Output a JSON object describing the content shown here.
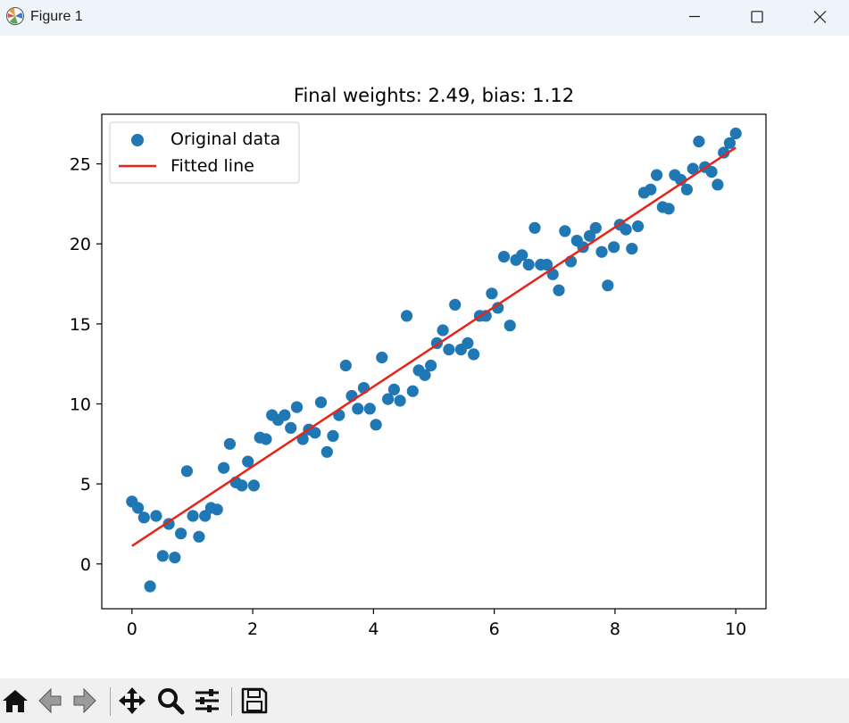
{
  "window": {
    "title": "Figure 1",
    "icons": [
      "matplotlib-icon",
      "minimize-icon",
      "maximize-icon",
      "close-icon"
    ]
  },
  "toolbar": {
    "icons": [
      "home-icon",
      "back-arrow-icon",
      "forward-arrow-icon",
      "pan-icon",
      "zoom-icon",
      "configure-subplots-icon",
      "save-icon"
    ]
  },
  "colors": {
    "points": "#1f77b4",
    "line": "#e8231b",
    "titlebar": "#eff4f9",
    "toolbar": "#f0f0f0"
  },
  "chart_data": {
    "type": "scatter",
    "title": "Final weights: 2.49, bias: 1.12",
    "xlabel": "",
    "ylabel": "",
    "xlim": [
      -0.5,
      10.5
    ],
    "ylim": [
      -2.8,
      28.1
    ],
    "xticks": [
      0,
      2,
      4,
      6,
      8,
      10
    ],
    "yticks": [
      0,
      5,
      10,
      15,
      20,
      25
    ],
    "grid": false,
    "legend": {
      "position": "top-left",
      "entries": [
        "Original data",
        "Fitted line"
      ]
    },
    "series": [
      {
        "name": "Original data",
        "kind": "scatter",
        "x": [
          0.0,
          0.1,
          0.2,
          0.3,
          0.4,
          0.51,
          0.61,
          0.71,
          0.81,
          0.91,
          1.01,
          1.11,
          1.21,
          1.31,
          1.41,
          1.52,
          1.62,
          1.72,
          1.82,
          1.92,
          2.02,
          2.12,
          2.22,
          2.32,
          2.42,
          2.53,
          2.63,
          2.73,
          2.83,
          2.93,
          3.03,
          3.13,
          3.23,
          3.33,
          3.43,
          3.54,
          3.64,
          3.74,
          3.84,
          3.94,
          4.04,
          4.14,
          4.24,
          4.34,
          4.44,
          4.55,
          4.65,
          4.75,
          4.85,
          4.95,
          5.05,
          5.15,
          5.25,
          5.35,
          5.45,
          5.56,
          5.66,
          5.76,
          5.86,
          5.96,
          6.06,
          6.16,
          6.26,
          6.36,
          6.46,
          6.57,
          6.67,
          6.77,
          6.87,
          6.97,
          7.07,
          7.17,
          7.27,
          7.37,
          7.47,
          7.58,
          7.68,
          7.78,
          7.88,
          7.98,
          8.08,
          8.18,
          8.28,
          8.38,
          8.48,
          8.59,
          8.69,
          8.79,
          8.89,
          8.99,
          9.09,
          9.19,
          9.29,
          9.39,
          9.49,
          9.6,
          9.7,
          9.8,
          9.9,
          10.0
        ],
        "y": [
          3.9,
          3.5,
          2.9,
          -1.4,
          3.0,
          0.5,
          2.5,
          0.4,
          1.9,
          5.8,
          3.0,
          1.7,
          3.0,
          3.5,
          3.4,
          6.0,
          7.5,
          5.1,
          4.9,
          6.4,
          4.9,
          7.9,
          7.8,
          9.3,
          9.0,
          9.3,
          8.5,
          9.8,
          7.8,
          8.4,
          8.2,
          10.1,
          7.0,
          8.0,
          9.3,
          12.4,
          10.5,
          9.7,
          11.0,
          9.7,
          8.7,
          12.9,
          10.3,
          10.9,
          10.2,
          15.5,
          10.8,
          12.1,
          11.8,
          12.4,
          13.8,
          14.6,
          13.4,
          16.2,
          13.4,
          13.8,
          13.1,
          15.5,
          15.5,
          16.9,
          16.0,
          19.2,
          14.9,
          19.0,
          19.3,
          18.7,
          21.0,
          18.7,
          18.7,
          18.1,
          17.1,
          20.8,
          18.9,
          20.2,
          19.8,
          20.5,
          21.0,
          19.5,
          17.4,
          19.8,
          21.2,
          20.9,
          19.7,
          21.1,
          23.2,
          23.4,
          24.3,
          22.3,
          22.2,
          24.3,
          24.0,
          23.4,
          24.7,
          26.4,
          24.8,
          24.5,
          23.7,
          25.7,
          26.3,
          26.9
        ]
      },
      {
        "name": "Fitted line",
        "kind": "line",
        "x": [
          0,
          10
        ],
        "y": [
          1.12,
          26.02
        ]
      }
    ]
  }
}
